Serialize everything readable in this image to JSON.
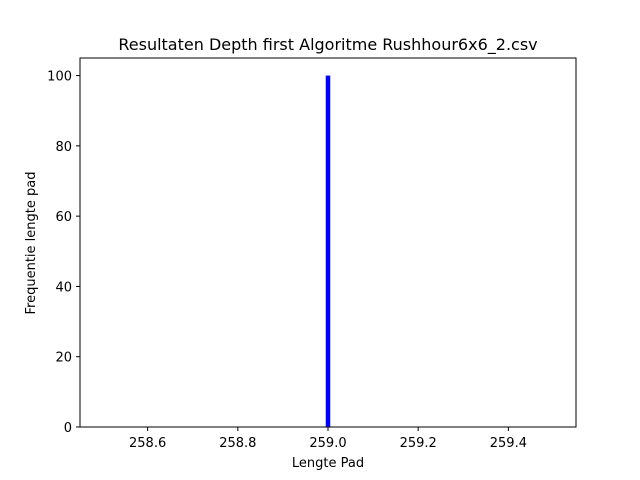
{
  "chart_data": {
    "type": "bar",
    "title": "Resultaten Depth first Algoritme Rushhour6x6_2.csv",
    "xlabel": "Lengte Pad",
    "ylabel": "Frequentie lengte pad",
    "xlim": [
      258.45,
      259.55
    ],
    "ylim": [
      0,
      105
    ],
    "xticks": [
      258.6,
      258.8,
      259.0,
      259.2,
      259.4
    ],
    "xtick_labels": [
      "258.6",
      "258.8",
      "259.0",
      "259.2",
      "259.4"
    ],
    "yticks": [
      0,
      20,
      40,
      60,
      80,
      100
    ],
    "ytick_labels": [
      "0",
      "20",
      "40",
      "60",
      "80",
      "100"
    ],
    "grid": false,
    "series": [
      {
        "x": [
          259.0
        ],
        "values": [
          100
        ],
        "bar_width": 0.01,
        "color": "#0000ff"
      }
    ]
  }
}
